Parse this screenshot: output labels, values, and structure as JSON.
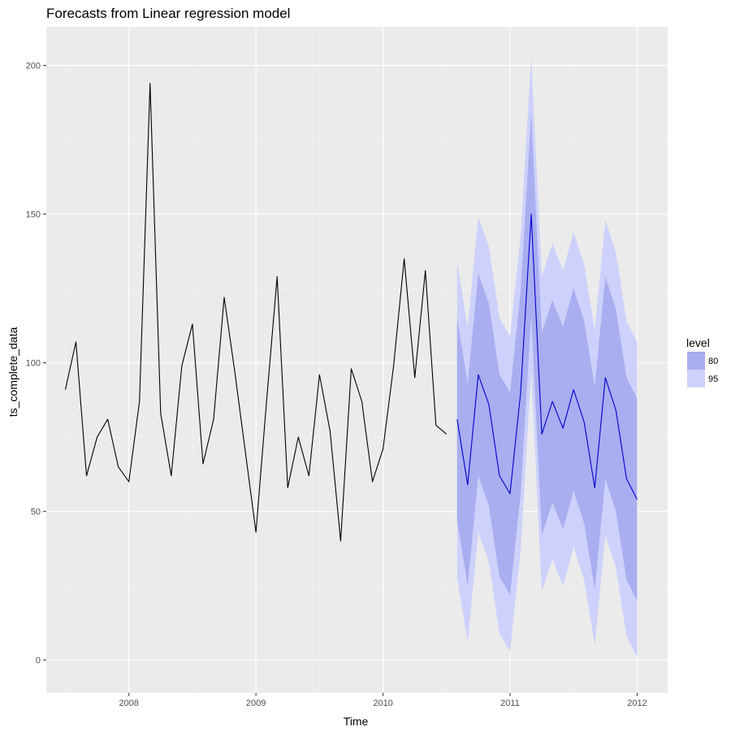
{
  "chart_data": {
    "type": "line",
    "title": "Forecasts from Linear regression model",
    "xlabel": "Time",
    "ylabel": "ts_complete_data",
    "xlim": [
      2007.35,
      2012.24
    ],
    "ylim": [
      -11,
      213
    ],
    "x_ticks": [
      2008,
      2009,
      2010,
      2011,
      2012
    ],
    "x_tick_labels": [
      "2008",
      "2009",
      "2010",
      "2011",
      "2012"
    ],
    "y_ticks": [
      0,
      50,
      100,
      150,
      200
    ],
    "y_tick_labels": [
      "0",
      "50",
      "100",
      "150",
      "200"
    ],
    "grid": true,
    "legend": {
      "title": "level",
      "position": "right",
      "entries": [
        {
          "label": "80",
          "color": "#a8aeef"
        },
        {
          "label": "95",
          "color": "#cdd1fb"
        }
      ]
    },
    "colors": {
      "panel_bg": "#ebebeb",
      "grid_major": "#ffffff",
      "grid_minor": "#f5f5f5",
      "history_line": "#000000",
      "forecast_line": "#0000cc",
      "band_80": "#a8aeef",
      "band_95": "#cdd1fb"
    },
    "history": {
      "start": 2007.5,
      "frequency": 12,
      "values": [
        91,
        107,
        62,
        75,
        81,
        65,
        60,
        87,
        194,
        83,
        62,
        99,
        113,
        66,
        81,
        122,
        97,
        70,
        43,
        87,
        129,
        58,
        75,
        62,
        96,
        77,
        40,
        98,
        87,
        60,
        71,
        99,
        135,
        95,
        131,
        79,
        76
      ]
    },
    "forecast": {
      "start": 2010.583,
      "frequency": 12,
      "mean": [
        81,
        59,
        96,
        86,
        62,
        56,
        90,
        150,
        76,
        87,
        78,
        91,
        80,
        58,
        95,
        84,
        61,
        54
      ],
      "lo80": [
        47,
        25,
        62,
        52,
        28,
        22,
        56,
        116,
        42,
        53,
        44,
        57,
        46,
        24,
        61,
        50,
        27,
        20
      ],
      "hi80": [
        115,
        93,
        130,
        120,
        96,
        90,
        124,
        184,
        110,
        121,
        112,
        125,
        114,
        92,
        129,
        118,
        95,
        88
      ],
      "lo95": [
        28,
        6,
        43,
        33,
        9,
        3,
        37,
        97,
        23,
        34,
        25,
        38,
        27,
        5,
        42,
        31,
        8,
        1
      ],
      "hi95": [
        134,
        112,
        149,
        139,
        115,
        109,
        143,
        203,
        129,
        140,
        131,
        144,
        133,
        111,
        148,
        137,
        114,
        107
      ]
    }
  }
}
